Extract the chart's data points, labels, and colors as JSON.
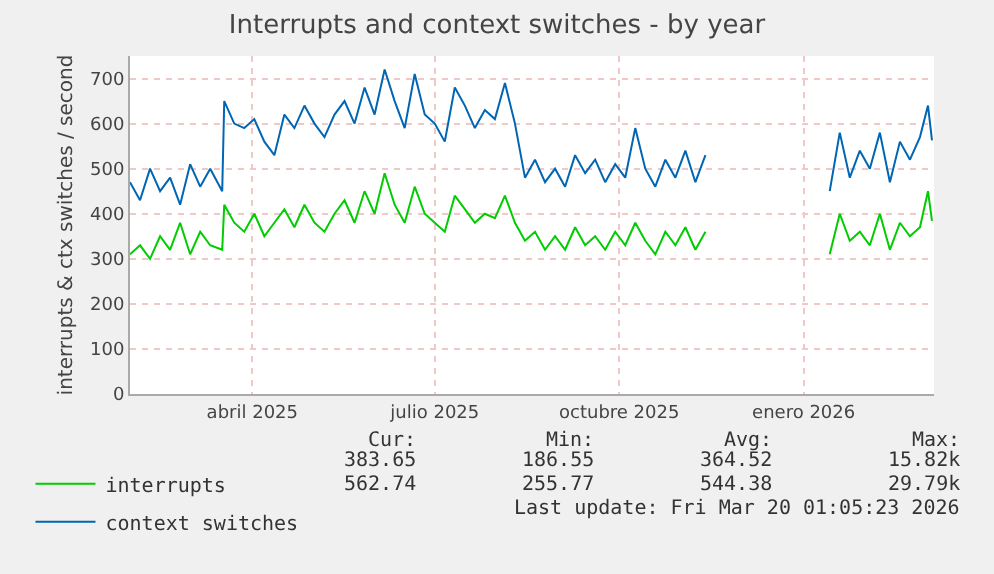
{
  "chart_data": {
    "type": "line",
    "title": "Interrupts and context switches - by year",
    "ylabel": "interrupts & ctx switches / second",
    "x": [
      "2025-02-13",
      "2025-02-18",
      "2025-02-23",
      "2025-02-28",
      "2025-03-05",
      "2025-03-10",
      "2025-03-15",
      "2025-03-20",
      "2025-03-25",
      "2025-03-31",
      "2025-04-01",
      "2025-04-06",
      "2025-04-11",
      "2025-04-16",
      "2025-04-21",
      "2025-04-26",
      "2025-05-01",
      "2025-05-06",
      "2025-05-11",
      "2025-05-16",
      "2025-05-21",
      "2025-05-26",
      "2025-05-31",
      "2025-06-05",
      "2025-06-10",
      "2025-06-15",
      "2025-06-20",
      "2025-06-25",
      "2025-06-30",
      "2025-07-05",
      "2025-07-10",
      "2025-07-15",
      "2025-07-20",
      "2025-07-25",
      "2025-07-30",
      "2025-08-04",
      "2025-08-09",
      "2025-08-14",
      "2025-08-19",
      "2025-08-24",
      "2025-08-29",
      "2025-09-03",
      "2025-09-08",
      "2025-09-13",
      "2025-09-18",
      "2025-09-23",
      "2025-09-28",
      "2025-10-03",
      "2025-10-08",
      "2025-10-13",
      "2025-10-18",
      "2025-10-23",
      "2025-10-28",
      "2025-11-02",
      "2025-11-07",
      "2025-11-12",
      "2025-11-17",
      "2025-11-22",
      "2025-11-27",
      "2025-12-15",
      "2026-01-28",
      "2026-02-02",
      "2026-02-07",
      "2026-02-12",
      "2026-02-17",
      "2026-02-22",
      "2026-02-27",
      "2026-03-04",
      "2026-03-09",
      "2026-03-14",
      "2026-03-18",
      "2026-03-20"
    ],
    "series": [
      {
        "name": "interrupts",
        "color": "#00cc00",
        "values": [
          310,
          330,
          300,
          350,
          320,
          380,
          310,
          360,
          330,
          320,
          420,
          380,
          360,
          400,
          350,
          380,
          410,
          370,
          420,
          380,
          360,
          400,
          430,
          380,
          450,
          400,
          490,
          420,
          380,
          460,
          400,
          380,
          360,
          440,
          410,
          380,
          400,
          390,
          440,
          380,
          340,
          360,
          320,
          350,
          320,
          370,
          330,
          350,
          320,
          360,
          330,
          380,
          340,
          310,
          360,
          330,
          370,
          320,
          360,
          null,
          310,
          400,
          340,
          360,
          330,
          400,
          320,
          380,
          350,
          370,
          450,
          384
        ]
      },
      {
        "name": "context switches",
        "color": "#0066b3",
        "values": [
          470,
          430,
          500,
          450,
          480,
          420,
          510,
          460,
          500,
          450,
          650,
          600,
          590,
          610,
          560,
          530,
          620,
          590,
          640,
          600,
          570,
          620,
          650,
          600,
          680,
          620,
          720,
          650,
          590,
          710,
          620,
          600,
          560,
          680,
          640,
          590,
          630,
          610,
          690,
          600,
          480,
          520,
          470,
          500,
          460,
          530,
          490,
          520,
          470,
          510,
          480,
          590,
          500,
          460,
          520,
          480,
          540,
          470,
          530,
          null,
          450,
          580,
          480,
          540,
          500,
          580,
          470,
          560,
          520,
          570,
          640,
          563
        ]
      }
    ],
    "xlim": [
      "2025-02-13",
      "2026-03-21"
    ],
    "xticks": [
      {
        "value": "2025-04-15",
        "label": "abril 2025"
      },
      {
        "value": "2025-07-15",
        "label": "julio 2025"
      },
      {
        "value": "2025-10-15",
        "label": "octubre 2025"
      },
      {
        "value": "2026-01-15",
        "label": "enero 2026"
      }
    ],
    "ylim": [
      0,
      750
    ],
    "yticks": [
      0,
      100,
      200,
      300,
      400,
      500,
      600,
      700
    ],
    "grid": true,
    "legend": "bottom left",
    "marker": "none",
    "line_style": "solid",
    "annotations": [
      "Cur:",
      "Min:",
      "Avg:",
      "Max:",
      "383.65",
      "186.55",
      "364.52",
      "15.82k",
      "562.74",
      "255.77",
      "544.38",
      "29.79k",
      "Last update: Fri Mar 20 01:05:23 2026"
    ]
  }
}
